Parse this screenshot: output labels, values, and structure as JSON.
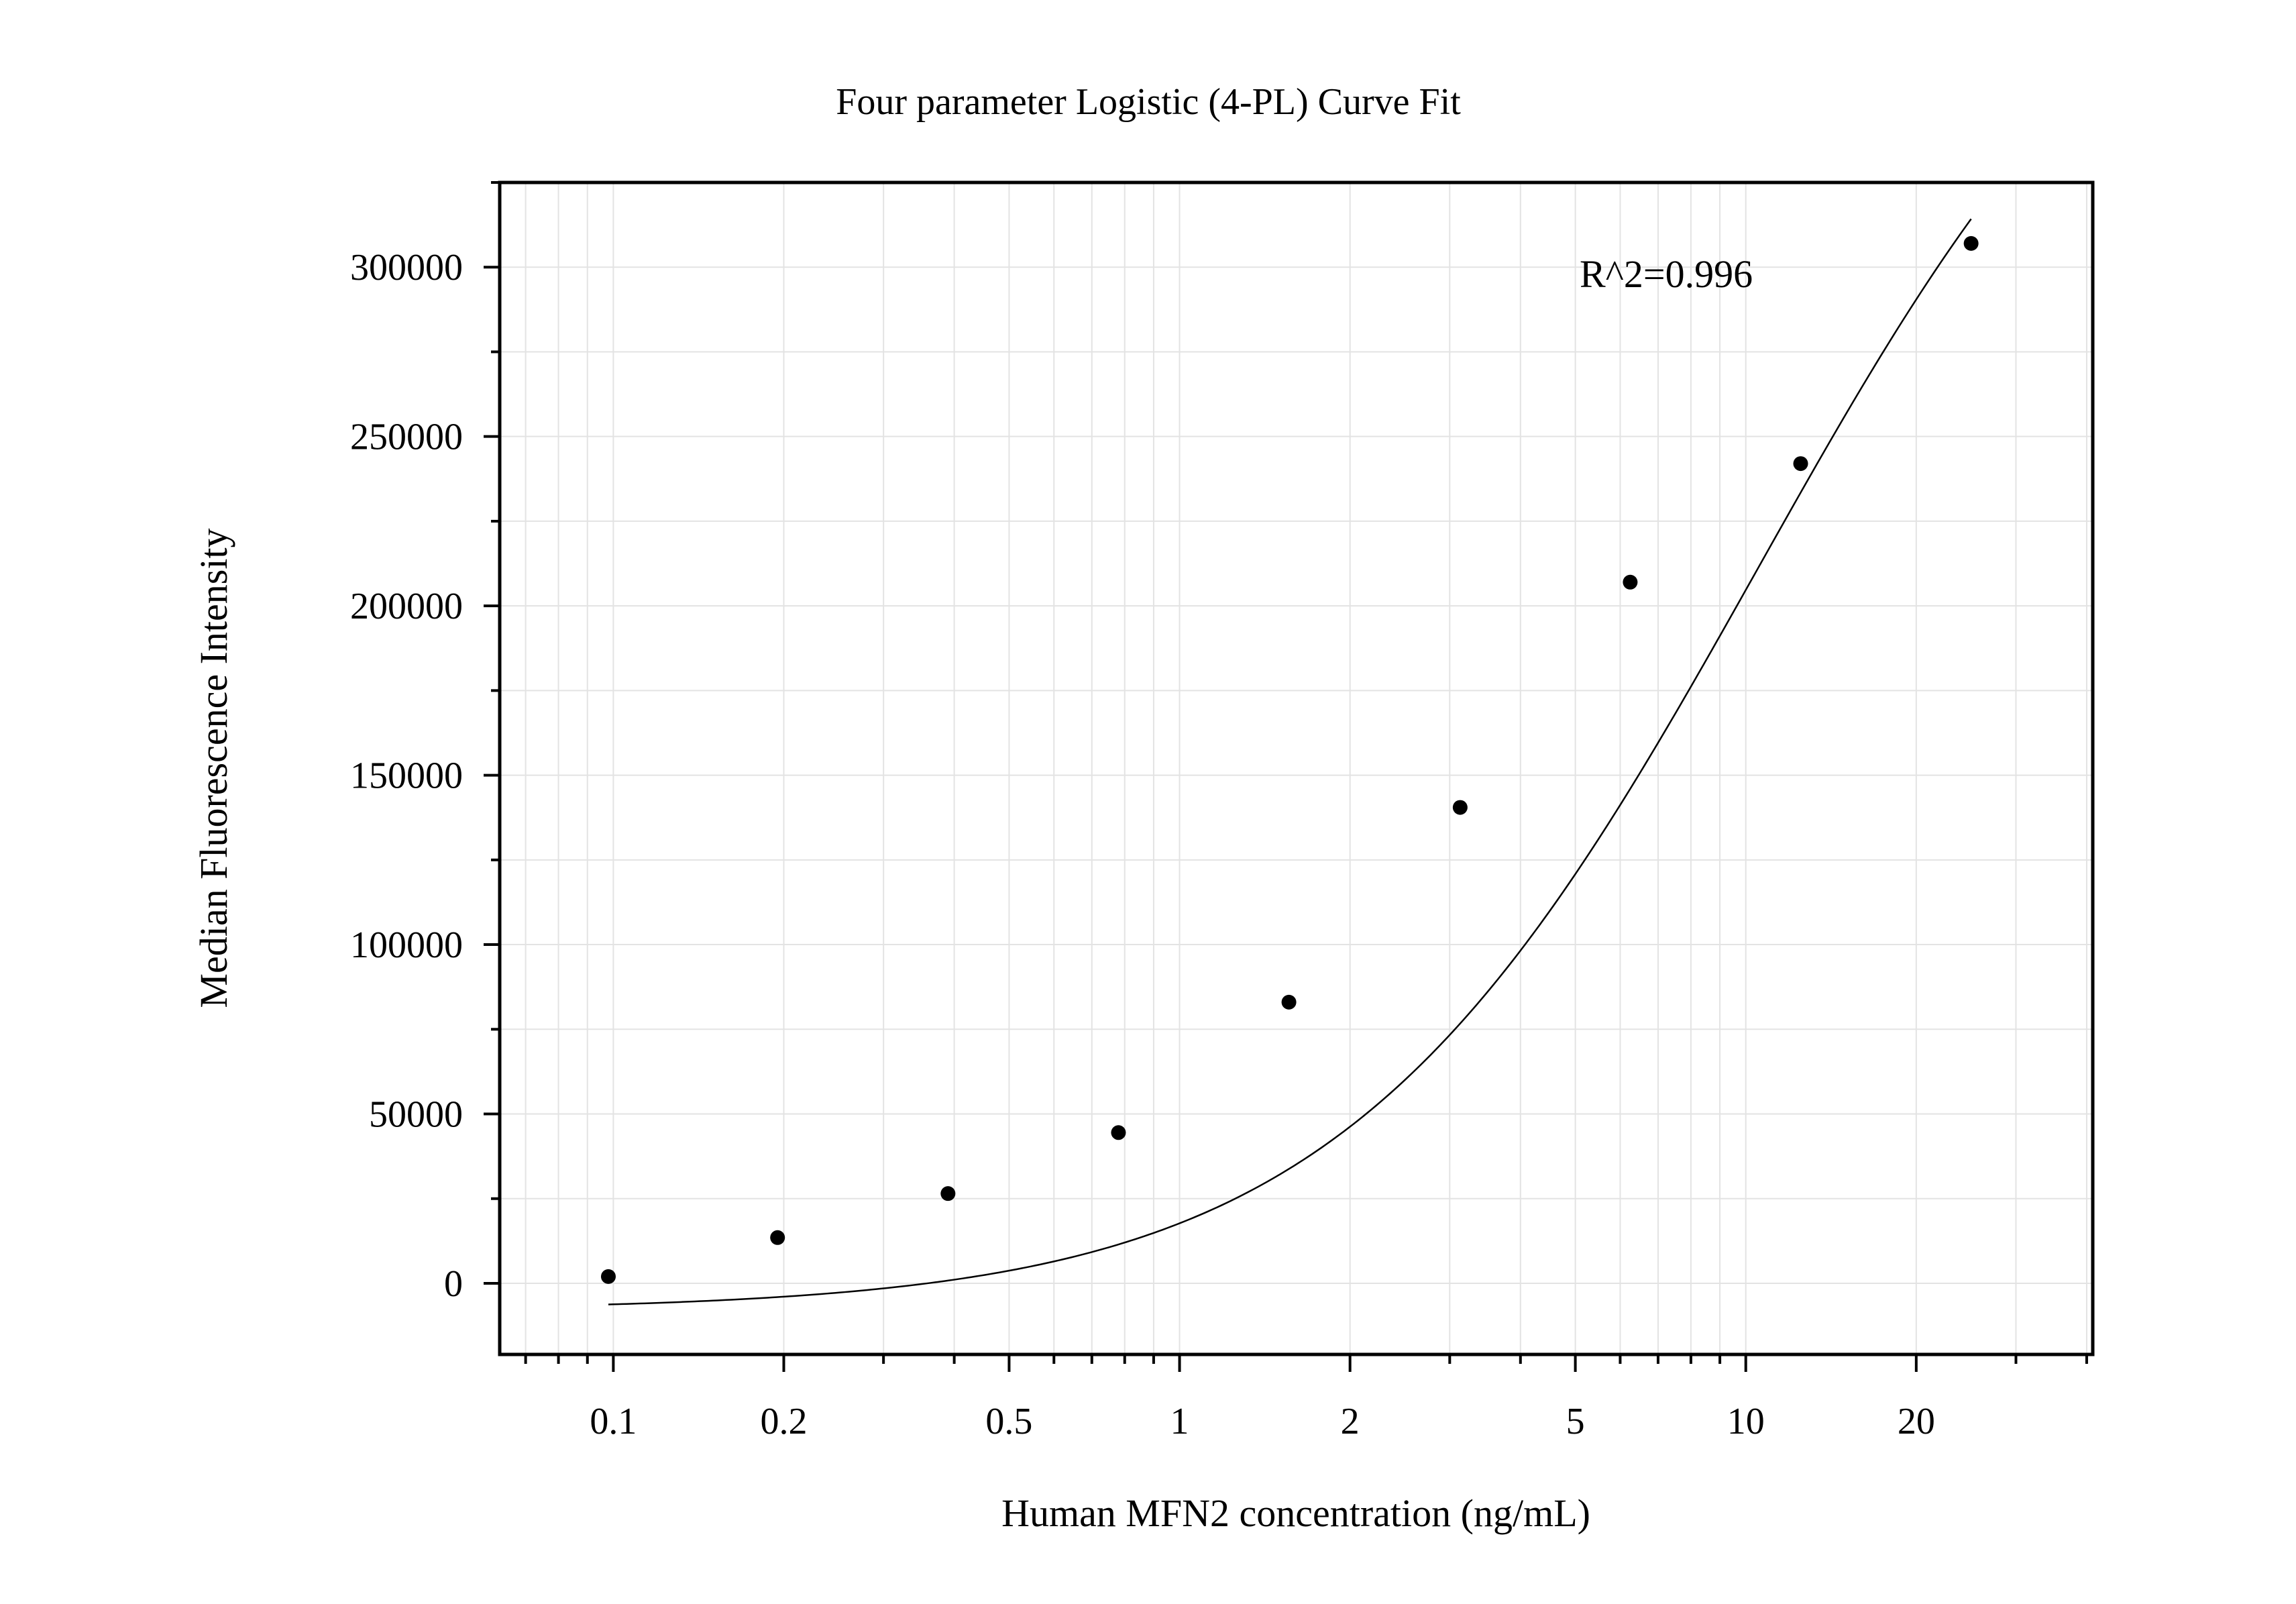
{
  "chart_data": {
    "type": "scatter",
    "title": "Four parameter Logistic (4-PL) Curve Fit",
    "xlabel": "Human MFN2 concentration (ng/mL)",
    "ylabel": "Median Fluorescence Intensity",
    "x_scale": "log",
    "xlim": [
      0.063,
      41
    ],
    "ylim": [
      -21000,
      325000
    ],
    "x_ticks": [
      0.1,
      0.2,
      0.5,
      1,
      2,
      5,
      10,
      20
    ],
    "x_tick_labels": [
      "0.1",
      "0.2",
      "0.5",
      "1",
      "2",
      "5",
      "10",
      "20"
    ],
    "y_ticks": [
      0,
      50000,
      100000,
      150000,
      200000,
      250000,
      300000
    ],
    "y_tick_labels": [
      "0",
      "50000",
      "100000",
      "150000",
      "200000",
      "250000",
      "300000"
    ],
    "grid": true,
    "annotation": "R^2=0.996",
    "series": [
      {
        "kind": "points",
        "x": [
          0.098,
          0.195,
          0.39,
          0.78,
          1.56,
          3.13,
          6.25,
          12.5,
          25
        ],
        "y": [
          2000,
          13500,
          26500,
          44500,
          83000,
          140500,
          207000,
          242000,
          307000
        ]
      },
      {
        "kind": "fit-curve",
        "model": "4PL",
        "params": {
          "A": -8000,
          "B": 1.18,
          "C": 10.5,
          "D": 430000
        },
        "x_range": [
          0.098,
          25
        ]
      }
    ],
    "colors": {
      "points": "#000000",
      "curve": "#000000",
      "grid": "#e3e3e3",
      "frame": "#000000"
    }
  }
}
